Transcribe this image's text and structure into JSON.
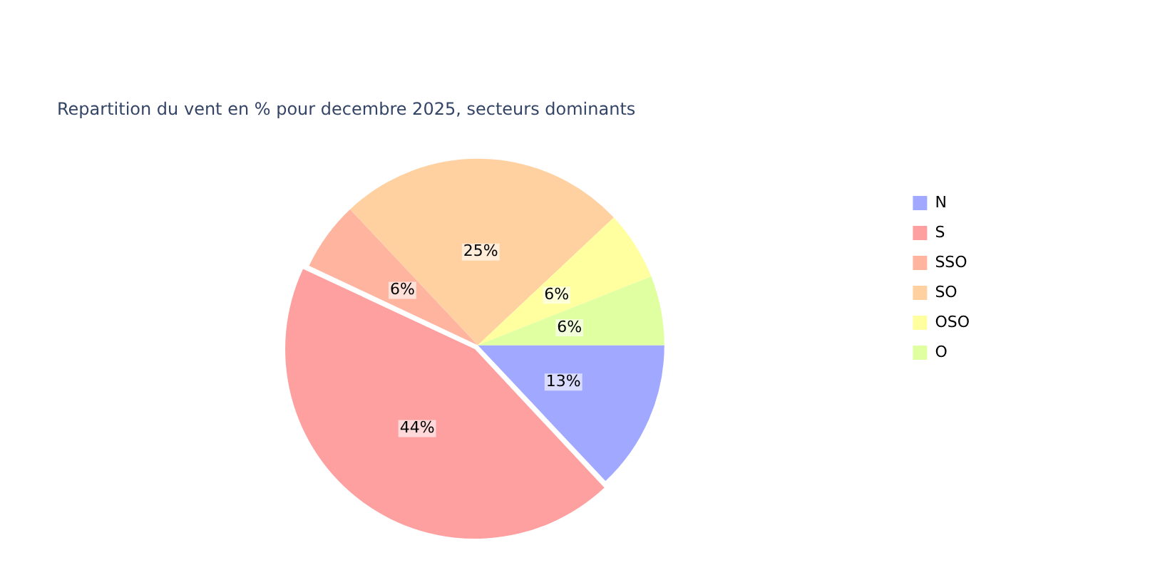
{
  "chart_data": {
    "type": "pie",
    "title": "Repartition du vent en % pour decembre 2025, secteurs dominants",
    "categories": [
      "N",
      "S",
      "SSO",
      "SO",
      "OSO",
      "O"
    ],
    "values": [
      13,
      44,
      6,
      25,
      6,
      6
    ],
    "value_labels": [
      "13%",
      "44%",
      "6%",
      "25%",
      "6%",
      "6%"
    ],
    "colors": [
      "#a0a8ff",
      "#ffa0a0",
      "#ffb4a0",
      "#ffd0a0",
      "#ffffa0",
      "#e0ffa0"
    ],
    "legend": "right"
  }
}
